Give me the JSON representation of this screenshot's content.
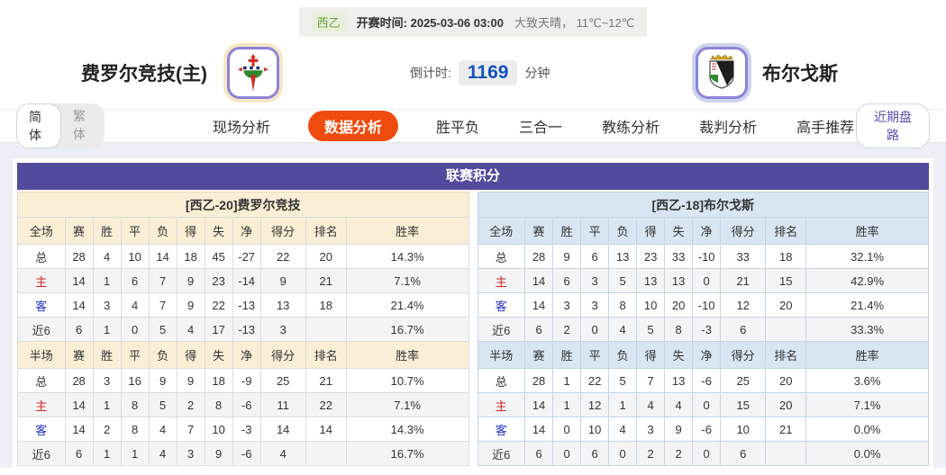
{
  "colors": {
    "accent-orange": "#f04b0e",
    "purple": "#514a9d",
    "cream": "#faeed6",
    "lightblue": "#d8e5f2",
    "countdown-blue": "#1352c0",
    "recent-purple": "#5b50b4",
    "league-green": "#69a23c",
    "content-bg": "#edeff6",
    "topbar-bg": "#efefec"
  },
  "top_bar": {
    "league_badge": "西乙",
    "kickoff": "开赛时间:  2025-03-06 03:00",
    "weather": "大致天晴， 11℃~12℃"
  },
  "match_header": {
    "home_name": "费罗尔竞技(主)",
    "away_name": "布尔戈斯",
    "countdown_label": "倒计时:",
    "countdown_value": "1169",
    "countdown_unit": "分钟"
  },
  "nav": {
    "lang_simplified": "简体",
    "lang_traditional": "繁体",
    "active_tab_index": 1,
    "tabs": [
      "现场分析",
      "数据分析",
      "胜平负",
      "三合一",
      "教练分析",
      "裁判分析",
      "高手推荐"
    ],
    "recent_button": "近期盘路"
  },
  "standings": {
    "title": "联赛积分",
    "columns": [
      "赛",
      "胜",
      "平",
      "负",
      "得",
      "失",
      "净",
      "得分",
      "排名",
      "胜率"
    ],
    "home": {
      "team_header": "[西乙-20]费罗尔竞技",
      "sections": [
        {
          "scope": "全场",
          "rows": [
            {
              "label": "总",
              "cells": [
                "28",
                "4",
                "10",
                "14",
                "18",
                "45",
                "-27",
                "22",
                "20",
                "14.3%"
              ]
            },
            {
              "label": "主",
              "cells": [
                "14",
                "1",
                "6",
                "7",
                "9",
                "23",
                "-14",
                "9",
                "21",
                "7.1%"
              ]
            },
            {
              "label": "客",
              "cells": [
                "14",
                "3",
                "4",
                "7",
                "9",
                "22",
                "-13",
                "13",
                "18",
                "21.4%"
              ]
            },
            {
              "label": "近6",
              "cells": [
                "6",
                "1",
                "0",
                "5",
                "4",
                "17",
                "-13",
                "3",
                "",
                "16.7%"
              ]
            }
          ]
        },
        {
          "scope": "半场",
          "rows": [
            {
              "label": "总",
              "cells": [
                "28",
                "3",
                "16",
                "9",
                "9",
                "18",
                "-9",
                "25",
                "21",
                "10.7%"
              ]
            },
            {
              "label": "主",
              "cells": [
                "14",
                "1",
                "8",
                "5",
                "2",
                "8",
                "-6",
                "11",
                "22",
                "7.1%"
              ]
            },
            {
              "label": "客",
              "cells": [
                "14",
                "2",
                "8",
                "4",
                "7",
                "10",
                "-3",
                "14",
                "14",
                "14.3%"
              ]
            },
            {
              "label": "近6",
              "cells": [
                "6",
                "1",
                "1",
                "4",
                "3",
                "9",
                "-6",
                "4",
                "",
                "16.7%"
              ]
            }
          ]
        }
      ]
    },
    "away": {
      "team_header": "[西乙-18]布尔戈斯",
      "sections": [
        {
          "scope": "全场",
          "rows": [
            {
              "label": "总",
              "cells": [
                "28",
                "9",
                "6",
                "13",
                "23",
                "33",
                "-10",
                "33",
                "18",
                "32.1%"
              ]
            },
            {
              "label": "主",
              "cells": [
                "14",
                "6",
                "3",
                "5",
                "13",
                "13",
                "0",
                "21",
                "15",
                "42.9%"
              ]
            },
            {
              "label": "客",
              "cells": [
                "14",
                "3",
                "3",
                "8",
                "10",
                "20",
                "-10",
                "12",
                "20",
                "21.4%"
              ]
            },
            {
              "label": "近6",
              "cells": [
                "6",
                "2",
                "0",
                "4",
                "5",
                "8",
                "-3",
                "6",
                "",
                "33.3%"
              ]
            }
          ]
        },
        {
          "scope": "半场",
          "rows": [
            {
              "label": "总",
              "cells": [
                "28",
                "1",
                "22",
                "5",
                "7",
                "13",
                "-6",
                "25",
                "20",
                "3.6%"
              ]
            },
            {
              "label": "主",
              "cells": [
                "14",
                "1",
                "12",
                "1",
                "4",
                "4",
                "0",
                "15",
                "20",
                "7.1%"
              ]
            },
            {
              "label": "客",
              "cells": [
                "14",
                "0",
                "10",
                "4",
                "3",
                "9",
                "-6",
                "10",
                "21",
                "0.0%"
              ]
            },
            {
              "label": "近6",
              "cells": [
                "6",
                "0",
                "6",
                "0",
                "2",
                "2",
                "0",
                "6",
                "",
                "0.0%"
              ]
            }
          ]
        }
      ]
    }
  }
}
